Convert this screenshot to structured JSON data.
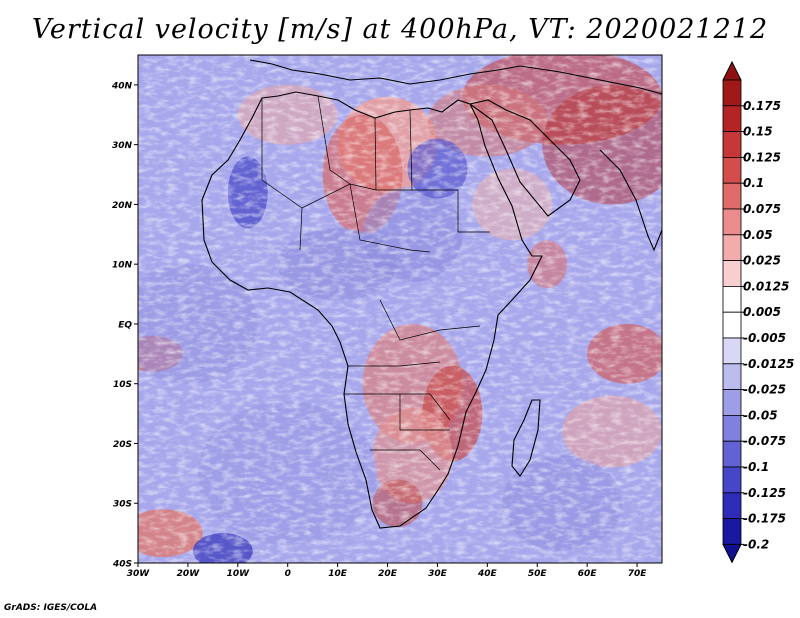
{
  "title": "Vertical velocity [m/s] at 400hPa, VT: 2020021212",
  "credit": "GrADS: IGES/COLA",
  "map": {
    "lat_labels": [
      "40N",
      "30N",
      "20N",
      "10N",
      "EQ",
      "10S",
      "20S",
      "30S",
      "40S"
    ],
    "lat_values": [
      40,
      30,
      20,
      10,
      0,
      -10,
      -20,
      -30,
      -40
    ],
    "lon_labels": [
      "30W",
      "20W",
      "10W",
      "0",
      "10E",
      "20E",
      "30E",
      "40E",
      "50E",
      "60E",
      "70E"
    ],
    "lon_values": [
      -30,
      -20,
      -10,
      0,
      10,
      20,
      30,
      40,
      50,
      60,
      70
    ],
    "lon_range": [
      -30,
      75
    ],
    "lat_range": [
      -40,
      45
    ]
  },
  "colorbar": {
    "labels": [
      "0.175",
      "0.15",
      "0.125",
      "0.1",
      "0.075",
      "0.05",
      "0.025",
      "0.0125",
      "0.005",
      "-0.005",
      "-0.0125",
      "-0.025",
      "-0.05",
      "-0.075",
      "-0.1",
      "-0.125",
      "-0.175",
      "-0.2"
    ],
    "colors": [
      "#a01818",
      "#b42424",
      "#c63838",
      "#d44d4d",
      "#e06b6b",
      "#ea8c8c",
      "#f2acac",
      "#f8cfcf",
      "#ffffff",
      "#ffffff",
      "#d8d8f6",
      "#bcbcee",
      "#9e9ee6",
      "#8080de",
      "#6262d4",
      "#4646c8",
      "#2c2cb8",
      "#1818a0"
    ],
    "over_color": "#8f1010",
    "under_color": "#101090"
  },
  "colors": {
    "ocean_blue": "#a7a7ec",
    "land_blue": "#b8b8f2",
    "red_patch": "#e68c8c"
  }
}
